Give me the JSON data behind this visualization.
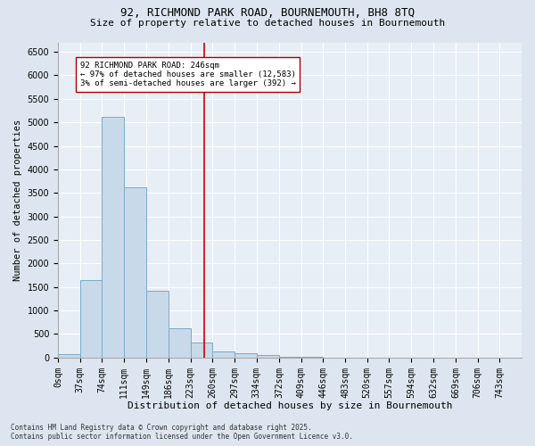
{
  "title_line1": "92, RICHMOND PARK ROAD, BOURNEMOUTH, BH8 8TQ",
  "title_line2": "Size of property relative to detached houses in Bournemouth",
  "xlabel": "Distribution of detached houses by size in Bournemouth",
  "ylabel": "Number of detached properties",
  "bar_color": "#c8daea",
  "bar_edge_color": "#7aaac8",
  "vline_color": "#cc0000",
  "vline_x": 246,
  "categories": [
    "0sqm",
    "37sqm",
    "74sqm",
    "111sqm",
    "149sqm",
    "186sqm",
    "223sqm",
    "260sqm",
    "297sqm",
    "334sqm",
    "372sqm",
    "409sqm",
    "446sqm",
    "483sqm",
    "520sqm",
    "557sqm",
    "594sqm",
    "632sqm",
    "669sqm",
    "706sqm",
    "743sqm"
  ],
  "bin_edges": [
    0,
    37,
    74,
    111,
    149,
    186,
    223,
    260,
    297,
    334,
    372,
    409,
    446,
    483,
    520,
    557,
    594,
    632,
    669,
    706,
    743,
    780
  ],
  "bar_heights": [
    70,
    1640,
    5110,
    3620,
    1410,
    615,
    315,
    130,
    85,
    45,
    20,
    10,
    5,
    3,
    2,
    1,
    1,
    0,
    0,
    0,
    0
  ],
  "ylim": [
    0,
    6700
  ],
  "yticks": [
    0,
    500,
    1000,
    1500,
    2000,
    2500,
    3000,
    3500,
    4000,
    4500,
    5000,
    5500,
    6000,
    6500
  ],
  "annotation_text": "92 RICHMOND PARK ROAD: 246sqm\n← 97% of detached houses are smaller (12,583)\n3% of semi-detached houses are larger (392) →",
  "annotation_box_color": "#ffffff",
  "annotation_box_edge": "#aa0000",
  "footer_line1": "Contains HM Land Registry data © Crown copyright and database right 2025.",
  "footer_line2": "Contains public sector information licensed under the Open Government Licence v3.0.",
  "bg_color": "#dde6f0",
  "plot_bg_color": "#e8eef6",
  "grid_color": "#ffffff",
  "title_fontsize": 9,
  "subtitle_fontsize": 8,
  "ylabel_fontsize": 7.5,
  "xlabel_fontsize": 8,
  "tick_fontsize": 7,
  "footer_fontsize": 5.5
}
